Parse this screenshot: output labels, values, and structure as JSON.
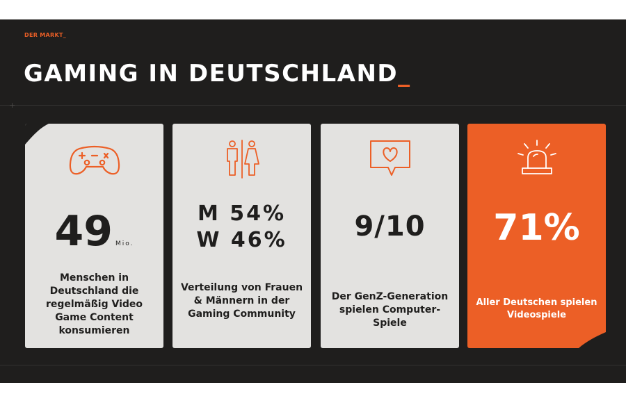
{
  "header": {
    "kicker": "DER MARKT_",
    "title": "GAMING IN DEUTSCHLAND",
    "title_cursor": "_"
  },
  "cards": [
    {
      "icon": "gamepad-icon",
      "value": "49",
      "unit": "Mio.",
      "description": "Menschen in Deutschland die regelmäßig Video Game Content konsumieren"
    },
    {
      "icon": "male-female-icon",
      "value_line1": "M 54%",
      "value_line2": "W 46%",
      "description": "Verteilung von Frauen & Männern in der Gaming Community"
    },
    {
      "icon": "heart-chat-icon",
      "value": "9/10",
      "description": "Der GenZ-Generation spielen Computer-Spiele"
    },
    {
      "icon": "alarm-light-icon",
      "value": "71%",
      "description": "Aller Deutschen spielen Videospiele"
    }
  ],
  "colors": {
    "accent": "#ec5f26",
    "background": "#1f1e1d",
    "card": "#e3e2e0",
    "text_dark": "#1f1e1d",
    "text_light": "#ffffff"
  }
}
